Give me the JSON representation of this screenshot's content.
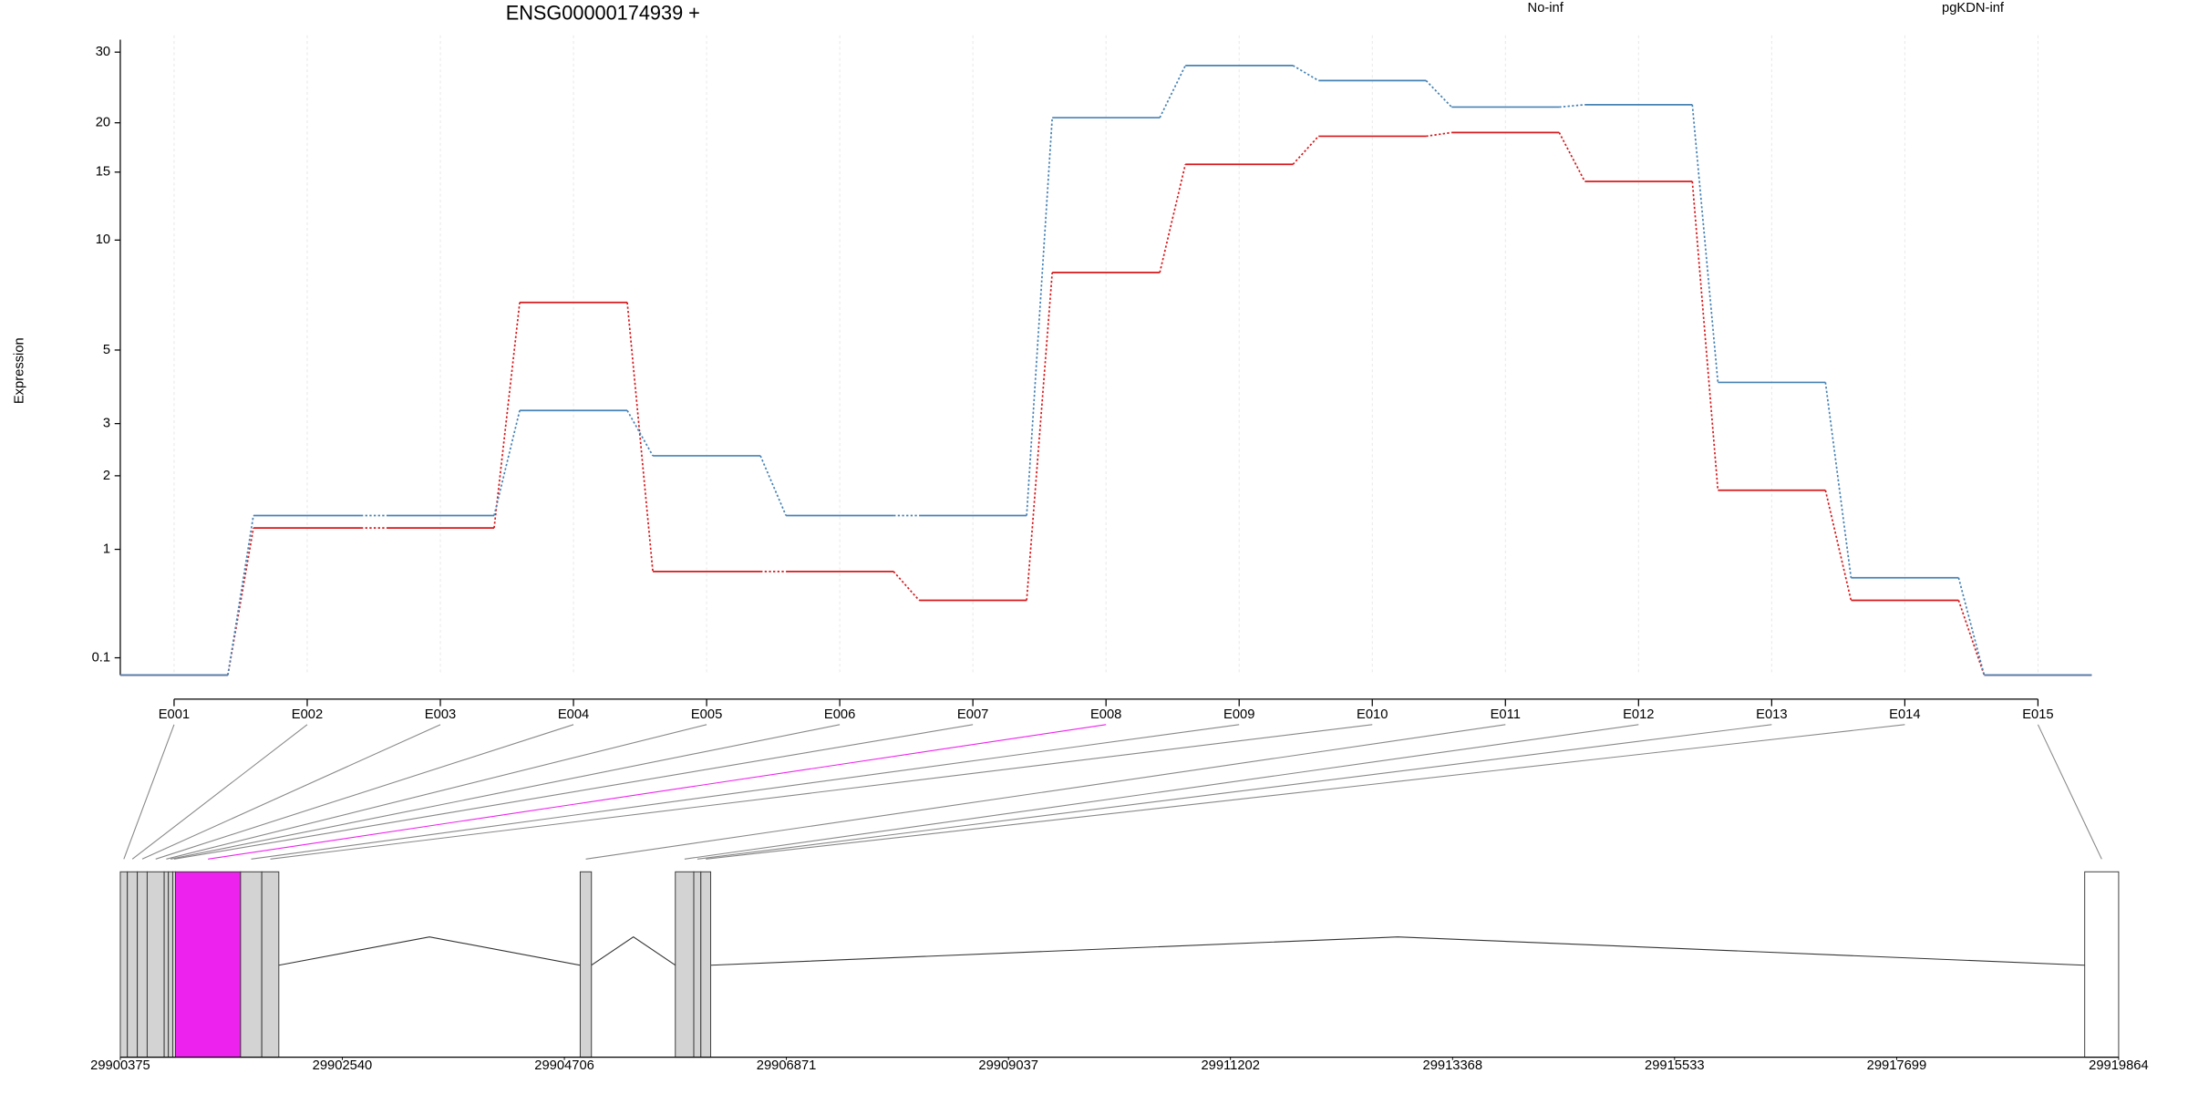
{
  "chart_data": {
    "type": "line",
    "title": "ENSG00000174939 +",
    "ylabel": "Expression",
    "yscale": "log1p",
    "categories": [
      "E001",
      "E002",
      "E003",
      "E004",
      "E005",
      "E006",
      "E007",
      "E008",
      "E009",
      "E010",
      "E011",
      "E012",
      "E013",
      "E014",
      "E015"
    ],
    "series": [
      {
        "name": "No-inf",
        "color": "#d7191c",
        "values": [
          0,
          1.25,
          1.25,
          6.8,
          0.77,
          0.77,
          0.51,
          8.2,
          15.7,
          18.5,
          18.9,
          14.2,
          1.77,
          0.51,
          0
        ]
      },
      {
        "name": "pgKDN-inf",
        "color": "#4682b4",
        "values": [
          0,
          1.41,
          1.41,
          3.3,
          2.35,
          1.41,
          1.41,
          20.6,
          27.8,
          25.5,
          21.9,
          22.2,
          4.02,
          0.71,
          0
        ]
      }
    ],
    "ylim": [
      0,
      33
    ],
    "yticks": [
      0.1,
      1,
      2,
      3,
      5,
      10,
      15,
      20,
      30
    ],
    "grid": true,
    "legend": "top-right"
  },
  "gene_model": {
    "xlim": [
      29900375,
      29919864
    ],
    "xticks": [
      29900375,
      29902540,
      29904706,
      29906871,
      29909037,
      29911202,
      29913368,
      29915533,
      29917699,
      29919864
    ],
    "exons": [
      {
        "start": 29900375,
        "end": 29900444
      },
      {
        "start": 29900444,
        "end": 29900541
      },
      {
        "start": 29900541,
        "end": 29900637
      },
      {
        "start": 29900637,
        "end": 29900803
      },
      {
        "start": 29900803,
        "end": 29900844
      },
      {
        "start": 29900844,
        "end": 29900886
      },
      {
        "start": 29900886,
        "end": 29900913
      },
      {
        "start": 29900913,
        "end": 29901548
      },
      {
        "start": 29901548,
        "end": 29901755
      },
      {
        "start": 29901755,
        "end": 29901921
      },
      {
        "start": 29904860,
        "end": 29904970
      },
      {
        "start": 29905788,
        "end": 29905968
      },
      {
        "start": 29905968,
        "end": 29906037
      },
      {
        "start": 29906037,
        "end": 29906133
      },
      {
        "start": 29919533,
        "end": 29919864
      }
    ],
    "highlight": 7,
    "highlight_color": "#ee22ee",
    "exon_color": "#d3d3d3"
  }
}
